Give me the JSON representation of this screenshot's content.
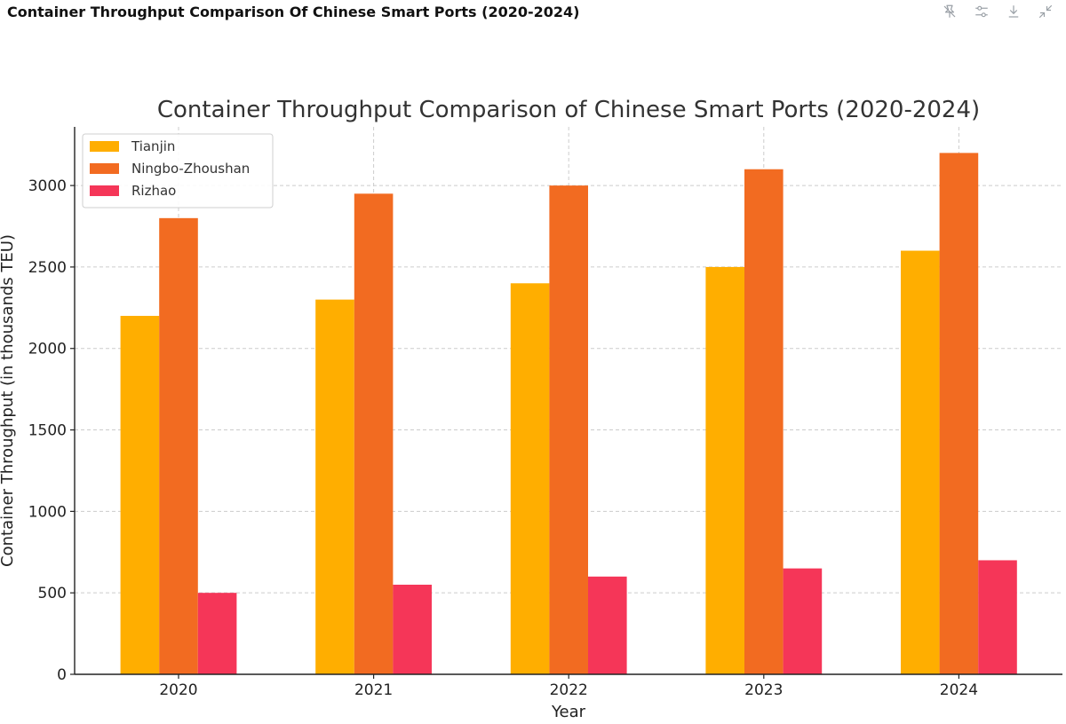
{
  "header": {
    "title": "Container Throughput Comparison Of Chinese Smart Ports (2020-2024)"
  },
  "toolbar": {
    "icons": [
      "pin-off-icon",
      "settings-sliders-icon",
      "download-icon",
      "collapse-icon"
    ]
  },
  "chart_data": {
    "type": "bar",
    "title": "Container Throughput Comparison of Chinese Smart Ports (2020-2024)",
    "xlabel": "Year",
    "ylabel": "Container Throughput (in thousands TEU)",
    "categories": [
      "2020",
      "2021",
      "2022",
      "2023",
      "2024"
    ],
    "series": [
      {
        "name": "Tianjin",
        "color": "#FFAE00",
        "values": [
          2200,
          2300,
          2400,
          2500,
          2600
        ]
      },
      {
        "name": "Ningbo-Zhoushan",
        "color": "#F26B21",
        "values": [
          2800,
          2950,
          3000,
          3100,
          3200
        ]
      },
      {
        "name": "Rizhao",
        "color": "#F53658",
        "values": [
          500,
          550,
          600,
          650,
          700
        ]
      }
    ],
    "ylim": [
      0,
      3360
    ],
    "yticks": [
      0,
      500,
      1000,
      1500,
      2000,
      2500,
      3000
    ],
    "grid": true,
    "legend_position": "upper-left"
  }
}
